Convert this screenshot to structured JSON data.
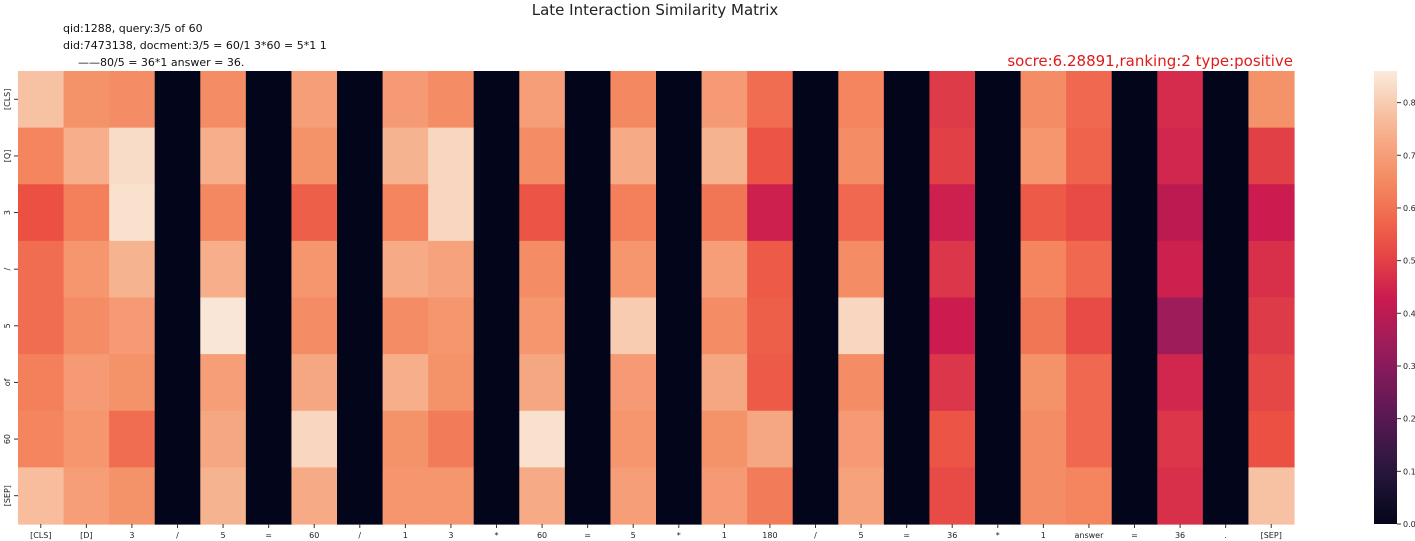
{
  "header": {
    "title": "Late Interaction Similarity Matrix",
    "info_line1": "qid:1288, query:3/5 of 60",
    "info_line2": "did:7473138, docment:3/5 = 60/1 3*60 = 5*1 1",
    "info_line3": "——80/5 = 36*1 answer = 36.",
    "score_text": "socre:6.28891,ranking:2 type:positive"
  },
  "chart_data": {
    "type": "heatmap",
    "title": "Late Interaction Similarity Matrix",
    "y_labels": [
      "[CLS]",
      "[Q]",
      "3",
      "/",
      "5",
      "of",
      "60",
      "[SEP]"
    ],
    "x_labels": [
      "[CLS]",
      "[D]",
      "3",
      "/",
      "5",
      "=",
      "60",
      "/",
      "1",
      "3",
      "*",
      "60",
      "=",
      "5",
      "*",
      "1",
      "180",
      "/",
      "5",
      "=",
      "36",
      "*",
      "1",
      "answer",
      "=",
      "36",
      ".",
      "[SEP]"
    ],
    "values": [
      [
        0.78,
        0.67,
        0.66,
        0.0,
        0.66,
        0.0,
        0.7,
        0.0,
        0.69,
        0.66,
        0.0,
        0.7,
        0.0,
        0.65,
        0.0,
        0.69,
        0.59,
        0.0,
        0.64,
        0.0,
        0.49,
        0.0,
        0.66,
        0.58,
        0.0,
        0.46,
        0.0,
        0.67
      ],
      [
        0.64,
        0.74,
        0.83,
        0.0,
        0.74,
        0.0,
        0.67,
        0.0,
        0.75,
        0.82,
        0.0,
        0.66,
        0.0,
        0.73,
        0.0,
        0.75,
        0.54,
        0.0,
        0.66,
        0.0,
        0.5,
        0.0,
        0.68,
        0.57,
        0.0,
        0.45,
        0.0,
        0.5
      ],
      [
        0.53,
        0.63,
        0.84,
        0.0,
        0.65,
        0.0,
        0.56,
        0.0,
        0.64,
        0.82,
        0.0,
        0.54,
        0.0,
        0.63,
        0.0,
        0.61,
        0.44,
        0.0,
        0.58,
        0.0,
        0.44,
        0.0,
        0.55,
        0.52,
        0.0,
        0.4,
        0.0,
        0.43
      ],
      [
        0.59,
        0.68,
        0.75,
        0.0,
        0.74,
        0.0,
        0.68,
        0.0,
        0.73,
        0.71,
        0.0,
        0.66,
        0.0,
        0.68,
        0.0,
        0.7,
        0.55,
        0.0,
        0.66,
        0.0,
        0.48,
        0.0,
        0.64,
        0.58,
        0.0,
        0.44,
        0.0,
        0.47
      ],
      [
        0.59,
        0.66,
        0.69,
        0.0,
        0.85,
        0.0,
        0.66,
        0.0,
        0.66,
        0.68,
        0.0,
        0.68,
        0.0,
        0.8,
        0.0,
        0.66,
        0.56,
        0.0,
        0.82,
        0.0,
        0.43,
        0.0,
        0.61,
        0.52,
        0.0,
        0.34,
        0.0,
        0.49
      ],
      [
        0.63,
        0.69,
        0.67,
        0.0,
        0.7,
        0.0,
        0.72,
        0.0,
        0.74,
        0.67,
        0.0,
        0.72,
        0.0,
        0.69,
        0.0,
        0.72,
        0.55,
        0.0,
        0.66,
        0.0,
        0.48,
        0.0,
        0.67,
        0.58,
        0.0,
        0.45,
        0.0,
        0.51
      ],
      [
        0.64,
        0.68,
        0.59,
        0.0,
        0.72,
        0.0,
        0.82,
        0.0,
        0.67,
        0.62,
        0.0,
        0.84,
        0.0,
        0.68,
        0.0,
        0.67,
        0.72,
        0.0,
        0.69,
        0.0,
        0.54,
        0.0,
        0.66,
        0.58,
        0.0,
        0.48,
        0.0,
        0.53
      ],
      [
        0.77,
        0.7,
        0.67,
        0.0,
        0.75,
        0.0,
        0.73,
        0.0,
        0.68,
        0.68,
        0.0,
        0.73,
        0.0,
        0.7,
        0.0,
        0.69,
        0.62,
        0.0,
        0.71,
        0.0,
        0.52,
        0.0,
        0.66,
        0.64,
        0.0,
        0.47,
        0.0,
        0.78
      ]
    ],
    "vmin": 0.0,
    "vmax": 0.86,
    "colorbar_ticks": [
      "0.0",
      "0.1",
      "0.2",
      "0.3",
      "0.4",
      "0.5",
      "0.6",
      "0.7",
      "0.8"
    ],
    "colormap": "rocket"
  }
}
